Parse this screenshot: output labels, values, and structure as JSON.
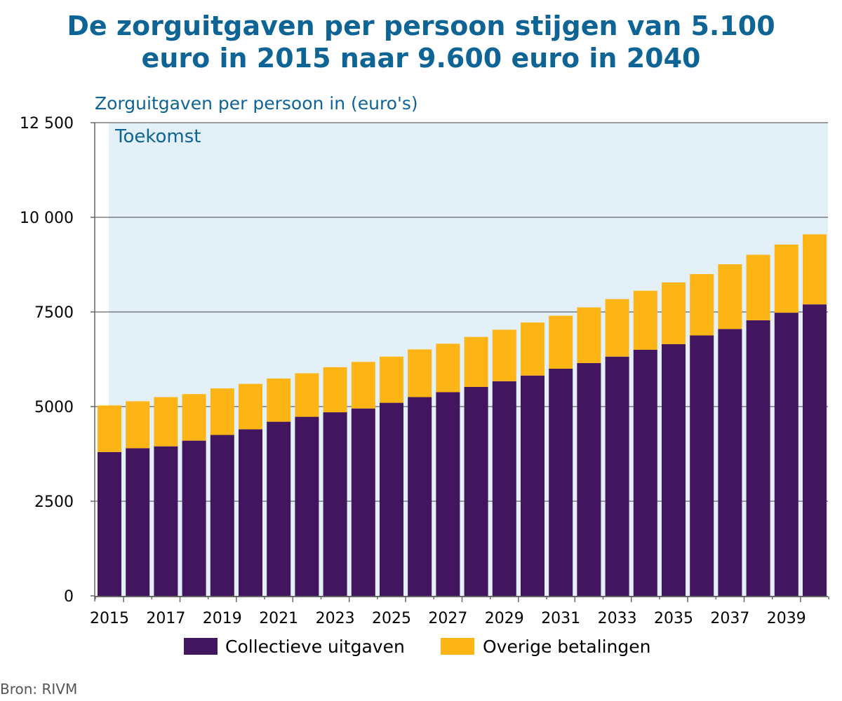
{
  "title_lines": [
    "De zorguitgaven per persoon stijgen van 5.100",
    "euro in 2015 naar 9.600 euro in 2040"
  ],
  "colors": {
    "title": "#0f6496",
    "future_region": "#e3f0f8",
    "collectieve": "#41165f",
    "overige": "#fdb515",
    "gridline": "#666666",
    "axis": "#666666"
  },
  "chart_data": {
    "type": "bar",
    "stacked": true,
    "title": "De zorguitgaven per persoon stijgen van 5.100 euro in 2015 naar 9.600 euro in 2040",
    "ylabel": "Zorguitgaven per persoon in (euro's)",
    "ylim": [
      0,
      12500
    ],
    "yticks": [
      0,
      2500,
      5000,
      7500,
      10000,
      12500
    ],
    "ytick_labels": [
      "0",
      "2500",
      "5000",
      "7500",
      "10 000",
      "12 500"
    ],
    "grid": true,
    "shaded_region": {
      "label": "Toekomst",
      "from": 2015,
      "to": 2040
    },
    "categories": [
      2015,
      2016,
      2017,
      2018,
      2019,
      2020,
      2021,
      2022,
      2023,
      2024,
      2025,
      2026,
      2027,
      2028,
      2029,
      2030,
      2031,
      2032,
      2033,
      2034,
      2035,
      2036,
      2037,
      2038,
      2039,
      2040
    ],
    "xtick_labels": [
      "2015",
      "2017",
      "2019",
      "2021",
      "2023",
      "2025",
      "2027",
      "2029",
      "2031",
      "2033",
      "2035",
      "2037",
      "2039"
    ],
    "series": [
      {
        "name": "Collectieve uitgaven",
        "values": [
          3800,
          3900,
          3950,
          4100,
          4250,
          4400,
          4600,
          4730,
          4850,
          4950,
          5100,
          5250,
          5380,
          5520,
          5670,
          5820,
          6000,
          6150,
          6320,
          6500,
          6650,
          6880,
          7050,
          7280,
          7480,
          7700
        ]
      },
      {
        "name": "Overige betalingen",
        "values": [
          1230,
          1240,
          1300,
          1230,
          1230,
          1200,
          1140,
          1150,
          1190,
          1230,
          1220,
          1260,
          1280,
          1320,
          1360,
          1400,
          1400,
          1470,
          1520,
          1560,
          1630,
          1620,
          1710,
          1730,
          1800,
          1850
        ]
      }
    ],
    "legend_position": "bottom"
  },
  "source": "Bron: RIVM"
}
